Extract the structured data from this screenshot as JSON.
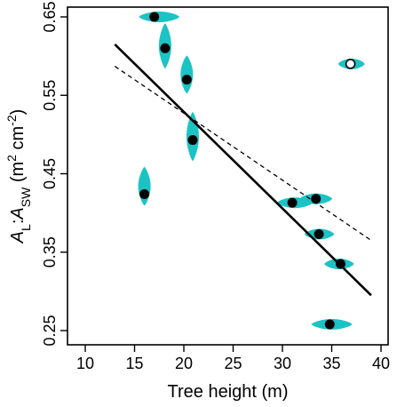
{
  "chart_data": {
    "type": "scatter",
    "xlabel": "Tree height (m)",
    "ylabel": {
      "a": "A",
      "a_sub": "L",
      "colon": ":",
      "b": "A",
      "b_sub": "SW",
      "units_open": " (m",
      "sup1": "2",
      "units_mid": " cm",
      "sup2": "-2",
      "units_close": ")"
    },
    "xlim": [
      10,
      40
    ],
    "ylim": [
      0.25,
      0.65
    ],
    "x_ticks": [
      10,
      15,
      20,
      25,
      30,
      35,
      40
    ],
    "x_tick_labels": [
      "10",
      "15",
      "20",
      "25",
      "30",
      "35",
      "40"
    ],
    "y_ticks": [
      0.25,
      0.35,
      0.45,
      0.55,
      0.65
    ],
    "y_tick_labels": [
      "0.25",
      "0.35",
      "0.45",
      "0.55",
      "0.65"
    ],
    "grid": false,
    "points": [
      {
        "x": 17.0,
        "y": 0.65,
        "filled": true,
        "dist": {
          "orient": "h",
          "lo": 15.5,
          "hi": 19.5
        }
      },
      {
        "x": 18.1,
        "y": 0.61,
        "filled": true,
        "dist": {
          "orient": "v",
          "lo": 0.585,
          "hi": 0.641
        }
      },
      {
        "x": 20.3,
        "y": 0.57,
        "filled": true,
        "dist": {
          "orient": "v",
          "lo": 0.553,
          "hi": 0.6
        }
      },
      {
        "x": 20.9,
        "y": 0.493,
        "filled": true,
        "dist": {
          "orient": "v",
          "lo": 0.467,
          "hi": 0.528
        }
      },
      {
        "x": 16.0,
        "y": 0.424,
        "filled": true,
        "dist": {
          "orient": "v",
          "lo": 0.41,
          "hi": 0.458
        }
      },
      {
        "x": 31.0,
        "y": 0.413,
        "filled": true,
        "dist": {
          "orient": "h",
          "lo": 29.5,
          "hi": 33.0
        }
      },
      {
        "x": 33.4,
        "y": 0.418,
        "filled": true,
        "dist": {
          "orient": "h",
          "lo": 31.8,
          "hi": 35.0
        }
      },
      {
        "x": 33.7,
        "y": 0.373,
        "filled": true,
        "dist": {
          "orient": "h",
          "lo": 32.3,
          "hi": 35.2
        }
      },
      {
        "x": 35.9,
        "y": 0.335,
        "filled": true,
        "dist": {
          "orient": "h",
          "lo": 34.3,
          "hi": 37.2
        }
      },
      {
        "x": 34.8,
        "y": 0.258,
        "filled": true,
        "dist": {
          "orient": "h",
          "lo": 33.0,
          "hi": 37.0
        }
      },
      {
        "x": 36.9,
        "y": 0.59,
        "filled": false,
        "dist": {
          "orient": "h",
          "lo": 35.7,
          "hi": 38.3
        }
      }
    ],
    "lines": [
      {
        "style": "solid",
        "x": [
          13,
          39
        ],
        "y": [
          0.615,
          0.295
        ]
      },
      {
        "style": "dashed",
        "x": [
          13,
          39
        ],
        "y": [
          0.587,
          0.365
        ]
      }
    ],
    "colors": {
      "distribution": "#1cc3c4",
      "point": "#000000",
      "open_point_fill": "#ffffff",
      "axis": "#000000"
    }
  }
}
